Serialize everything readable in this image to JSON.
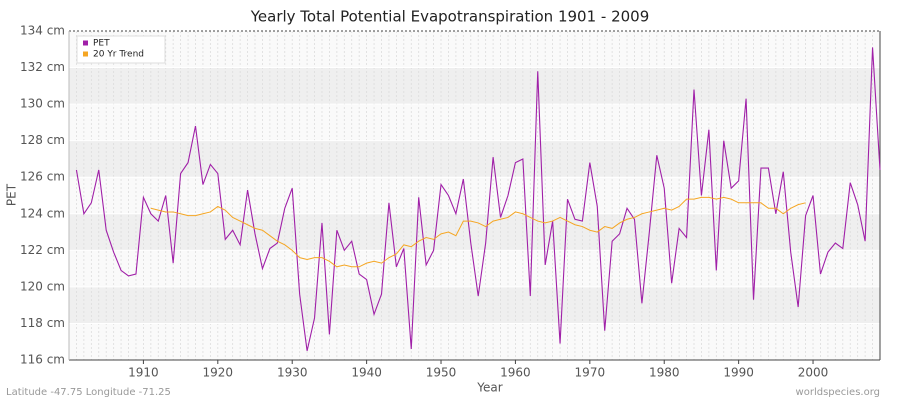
{
  "chart_data": {
    "type": "line",
    "title": "Yearly Total Potential Evapotranspiration 1901 - 2009",
    "x_label": "Year",
    "y_label": "PET",
    "footer_left": "Latitude -47.75 Longitude -71.25",
    "footer_right": "worldspecies.org",
    "x": [
      1901,
      1902,
      1903,
      1904,
      1905,
      1906,
      1907,
      1908,
      1909,
      1910,
      1911,
      1912,
      1913,
      1914,
      1915,
      1916,
      1917,
      1918,
      1919,
      1920,
      1921,
      1922,
      1923,
      1924,
      1925,
      1926,
      1927,
      1928,
      1929,
      1930,
      1931,
      1932,
      1933,
      1934,
      1935,
      1936,
      1937,
      1938,
      1939,
      1940,
      1941,
      1942,
      1943,
      1944,
      1945,
      1946,
      1947,
      1948,
      1949,
      1950,
      1951,
      1952,
      1953,
      1954,
      1955,
      1956,
      1957,
      1958,
      1959,
      1960,
      1961,
      1962,
      1963,
      1964,
      1965,
      1966,
      1967,
      1968,
      1969,
      1970,
      1971,
      1972,
      1973,
      1974,
      1975,
      1976,
      1977,
      1978,
      1979,
      1980,
      1981,
      1982,
      1983,
      1984,
      1985,
      1986,
      1987,
      1988,
      1989,
      1990,
      1991,
      1992,
      1993,
      1994,
      1995,
      1996,
      1997,
      1998,
      1999,
      2000,
      2001,
      2002,
      2003,
      2004,
      2005,
      2006,
      2007,
      2008,
      2009
    ],
    "series": [
      {
        "name": "PET",
        "color": "#a020a8",
        "values": [
          126.4,
          124.0,
          124.6,
          126.4,
          123.1,
          121.9,
          120.9,
          120.6,
          120.7,
          124.9,
          124.0,
          123.6,
          125.0,
          121.3,
          126.2,
          126.8,
          128.8,
          125.6,
          126.7,
          126.2,
          122.6,
          123.1,
          122.3,
          125.3,
          122.9,
          121.0,
          122.1,
          122.4,
          124.3,
          125.4,
          119.6,
          116.5,
          118.3,
          123.5,
          117.4,
          123.1,
          122.0,
          122.5,
          120.7,
          120.4,
          118.5,
          119.6,
          124.6,
          121.1,
          122.1,
          116.6,
          124.9,
          121.2,
          122.0,
          125.6,
          125.0,
          124.0,
          125.9,
          122.4,
          119.5,
          122.4,
          127.1,
          123.8,
          125.0,
          126.8,
          127.0,
          119.5,
          131.8,
          121.2,
          123.6,
          116.9,
          124.8,
          123.7,
          123.6,
          126.8,
          124.4,
          117.6,
          122.5,
          122.9,
          124.3,
          123.7,
          119.1,
          123.0,
          127.2,
          125.4,
          120.2,
          123.2,
          122.7,
          130.8,
          125.0,
          128.6,
          120.9,
          128.0,
          125.4,
          125.8,
          130.3,
          119.3,
          126.5,
          126.5,
          124.0,
          126.3,
          121.9,
          118.9,
          123.9,
          125.0,
          120.7,
          121.9,
          122.4,
          122.1,
          125.7,
          124.5,
          122.5,
          133.1,
          126.4
        ]
      },
      {
        "name": "20 Yr Trend",
        "color": "#f5a623",
        "values": [
          null,
          null,
          null,
          null,
          null,
          null,
          null,
          null,
          null,
          null,
          124.3,
          124.2,
          124.1,
          124.1,
          124.0,
          123.9,
          123.9,
          124.0,
          124.1,
          124.4,
          124.2,
          123.8,
          123.6,
          123.4,
          123.2,
          123.1,
          122.8,
          122.5,
          122.3,
          122.0,
          121.6,
          121.5,
          121.6,
          121.6,
          121.4,
          121.1,
          121.2,
          121.1,
          121.1,
          121.3,
          121.4,
          121.3,
          121.6,
          121.8,
          122.3,
          122.2,
          122.5,
          122.7,
          122.6,
          122.9,
          123.0,
          122.8,
          123.6,
          123.6,
          123.5,
          123.3,
          123.6,
          123.7,
          123.8,
          124.1,
          124.0,
          123.8,
          123.6,
          123.5,
          123.6,
          123.8,
          123.6,
          123.4,
          123.3,
          123.1,
          123.0,
          123.3,
          123.2,
          123.5,
          123.7,
          123.8,
          124.0,
          124.1,
          124.2,
          124.3,
          124.2,
          124.4,
          124.8,
          124.8,
          124.9,
          124.9,
          124.8,
          124.9,
          124.8,
          124.6,
          124.6,
          124.6,
          124.6,
          124.3,
          124.3,
          124.0,
          124.3,
          124.5,
          124.6,
          null,
          null,
          null,
          null,
          null,
          null,
          null,
          null,
          null,
          null
        ]
      }
    ],
    "xlim": [
      1900,
      2009
    ],
    "xticks": [
      1910,
      1920,
      1930,
      1940,
      1950,
      1960,
      1970,
      1980,
      1990,
      2000
    ],
    "ylim": [
      116,
      134
    ],
    "yticks": [
      {
        "value": 116,
        "label": "116 cm"
      },
      {
        "value": 118,
        "label": "118 cm"
      },
      {
        "value": 120,
        "label": "120 cm"
      },
      {
        "value": 122,
        "label": "122 cm"
      },
      {
        "value": 124,
        "label": "124 cm"
      },
      {
        "value": 126,
        "label": "126 cm"
      },
      {
        "value": 128,
        "label": "128 cm"
      },
      {
        "value": 130,
        "label": "130 cm"
      },
      {
        "value": 132,
        "label": "132 cm"
      },
      {
        "value": 134,
        "label": "134 cm"
      }
    ],
    "legend": "top-left",
    "grid": true
  }
}
